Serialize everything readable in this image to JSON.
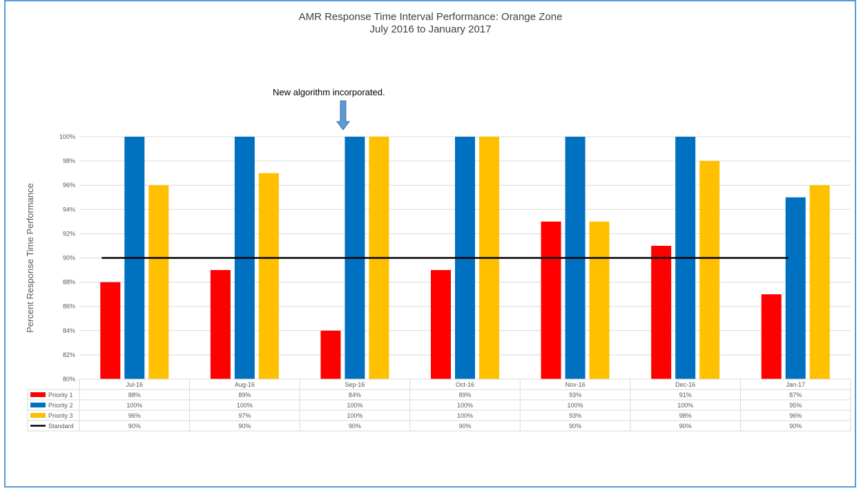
{
  "chart_data": {
    "type": "bar",
    "title": "AMR Response Time Interval Performance: Orange Zone",
    "subtitle": "July 2016 to January 2017",
    "ylabel": "Percent Response Time Performance",
    "xlabel": "",
    "ylim": [
      80,
      100
    ],
    "yticks": [
      "80%",
      "82%",
      "84%",
      "86%",
      "88%",
      "90%",
      "92%",
      "94%",
      "96%",
      "98%",
      "100%"
    ],
    "categories": [
      "Jul-16",
      "Aug-16",
      "Sep-16",
      "Oct-16",
      "Nov-16",
      "Dec-16",
      "Jan-17"
    ],
    "series": [
      {
        "name": "Priority 1",
        "type": "bar",
        "color": "#ff0000",
        "values": [
          88,
          89,
          84,
          89,
          93,
          91,
          87
        ],
        "labels": [
          "88%",
          "89%",
          "84%",
          "89%",
          "93%",
          "91%",
          "87%"
        ]
      },
      {
        "name": "Priority 2",
        "type": "bar",
        "color": "#0070c0",
        "values": [
          100,
          100,
          100,
          100,
          100,
          100,
          95
        ],
        "labels": [
          "100%",
          "100%",
          "100%",
          "100%",
          "100%",
          "100%",
          "95%"
        ]
      },
      {
        "name": "Priority 3",
        "type": "bar",
        "color": "#ffc000",
        "values": [
          96,
          97,
          100,
          100,
          93,
          98,
          96
        ],
        "labels": [
          "96%",
          "97%",
          "100%",
          "100%",
          "93%",
          "98%",
          "96%"
        ]
      },
      {
        "name": "Standard",
        "type": "line",
        "color": "#000000",
        "values": [
          90,
          90,
          90,
          90,
          90,
          90,
          90
        ],
        "labels": [
          "90%",
          "90%",
          "90%",
          "90%",
          "90%",
          "90%",
          "90%"
        ]
      }
    ],
    "annotation": {
      "text": "New algorithm incorporated.",
      "category": "Sep-16"
    },
    "grid": true,
    "legend": "data-table"
  }
}
